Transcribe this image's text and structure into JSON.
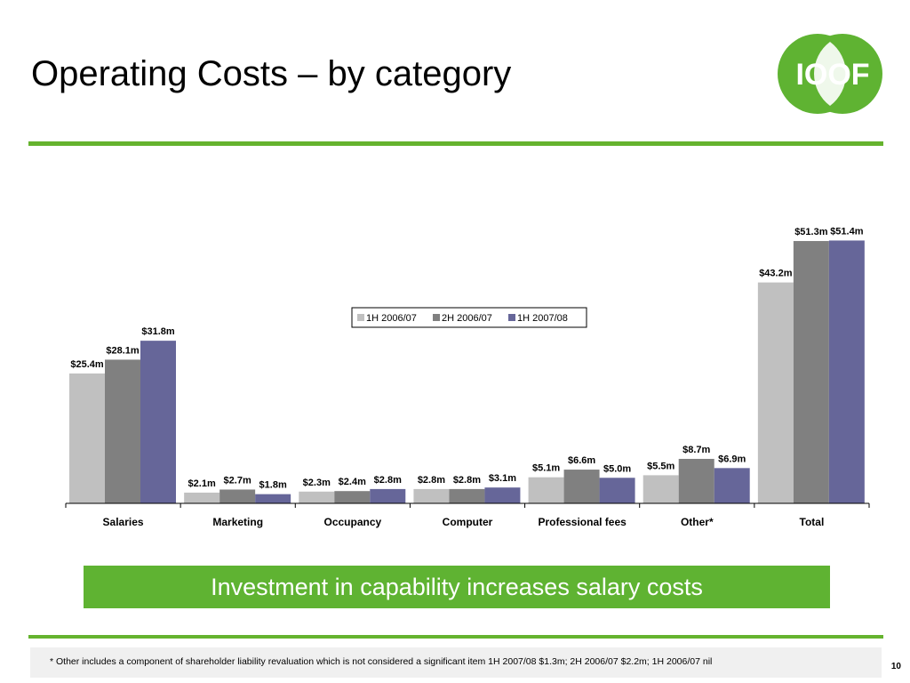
{
  "page": {
    "title": "Operating Costs – by category",
    "logo_text": "IOOF",
    "callout": "Investment in capability increases salary costs",
    "footnote": "* Other includes a component of shareholder liability revaluation which is not considered a significant item 1H 2007/08 $1.3m; 2H 2006/07 $2.2m; 1H 2006/07 nil",
    "page_number": "10"
  },
  "colors": {
    "accent_green": "#65b32e",
    "logo_green": "#5fb332"
  },
  "chart_data": {
    "type": "bar",
    "title": "",
    "xlabel": "",
    "ylabel": "",
    "ylim": [
      0,
      60
    ],
    "grid": false,
    "legend_position": "top-center",
    "categories": [
      "Salaries",
      "Marketing",
      "Occupancy",
      "Computer",
      "Professional fees",
      "Other*",
      "Total"
    ],
    "series": [
      {
        "name": "1H 2006/07",
        "color": "#c0c0c0",
        "values": [
          25.4,
          2.1,
          2.3,
          2.8,
          5.1,
          5.5,
          43.2
        ],
        "labels": [
          "$25.4m",
          "$2.1m",
          "$2.3m",
          "$2.8m",
          "$5.1m",
          "$5.5m",
          "$43.2m"
        ]
      },
      {
        "name": "2H 2006/07",
        "color": "#808080",
        "values": [
          28.1,
          2.7,
          2.4,
          2.8,
          6.6,
          8.7,
          51.3
        ],
        "labels": [
          "$28.1m",
          "$2.7m",
          "$2.4m",
          "$2.8m",
          "$6.6m",
          "$8.7m",
          "$51.3m"
        ]
      },
      {
        "name": "1H 2007/08",
        "color": "#666699",
        "values": [
          31.8,
          1.8,
          2.8,
          3.1,
          5.0,
          6.9,
          51.4
        ],
        "labels": [
          "$31.8m",
          "$1.8m",
          "$2.8m",
          "$3.1m",
          "$5.0m",
          "$6.9m",
          "$51.4m"
        ]
      }
    ]
  }
}
